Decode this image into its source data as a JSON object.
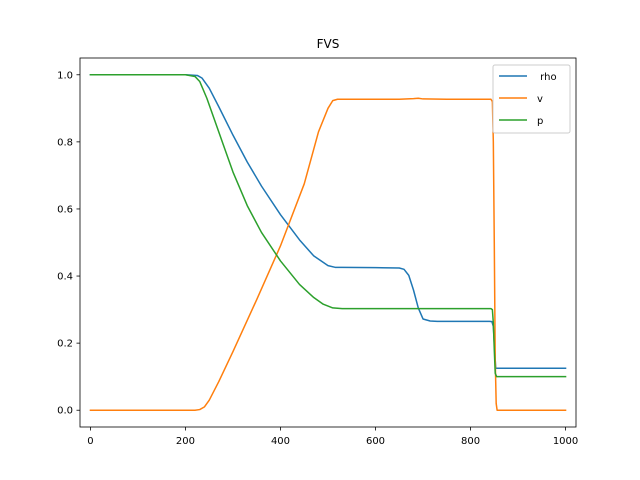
{
  "chart_data": {
    "type": "line",
    "title": "FVS",
    "xlabel": "",
    "ylabel": "",
    "xlim": [
      -22,
      1022
    ],
    "ylim": [
      -0.05,
      1.05
    ],
    "xticks": [
      0,
      200,
      400,
      600,
      800,
      1000
    ],
    "xtick_labels": [
      "0",
      "200",
      "400",
      "600",
      "800",
      "1000"
    ],
    "yticks": [
      0.0,
      0.2,
      0.4,
      0.6,
      0.8,
      1.0
    ],
    "ytick_labels": [
      "0.0",
      "0.2",
      "0.4",
      "0.6",
      "0.8",
      "1.0"
    ],
    "grid": false,
    "legend_position": "top-right",
    "series": [
      {
        "name": " rho",
        "color": "#1f77b4",
        "x": [
          0,
          200,
          225,
          235,
          250,
          270,
          300,
          330,
          360,
          400,
          440,
          470,
          500,
          515,
          530,
          600,
          650,
          660,
          670,
          680,
          690,
          700,
          715,
          730,
          760,
          800,
          840,
          845,
          848,
          850,
          853,
          856,
          860,
          900,
          1000
        ],
        "y": [
          1.0,
          1.0,
          0.998,
          0.99,
          0.96,
          0.905,
          0.82,
          0.74,
          0.668,
          0.583,
          0.508,
          0.46,
          0.431,
          0.426,
          0.426,
          0.425,
          0.424,
          0.42,
          0.402,
          0.358,
          0.305,
          0.272,
          0.266,
          0.265,
          0.265,
          0.265,
          0.265,
          0.264,
          0.25,
          0.2,
          0.125,
          0.125,
          0.125,
          0.125,
          0.125
        ]
      },
      {
        "name": "v",
        "color": "#ff7f0e",
        "x": [
          0,
          220,
          230,
          240,
          250,
          270,
          300,
          350,
          400,
          450,
          480,
          500,
          510,
          520,
          600,
          650,
          680,
          690,
          700,
          750,
          800,
          843,
          846,
          848,
          850,
          852,
          854,
          856,
          860,
          900,
          1000
        ],
        "y": [
          0.0,
          0.0,
          0.002,
          0.01,
          0.03,
          0.085,
          0.175,
          0.33,
          0.49,
          0.675,
          0.83,
          0.9,
          0.923,
          0.927,
          0.927,
          0.927,
          0.929,
          0.93,
          0.928,
          0.927,
          0.927,
          0.927,
          0.92,
          0.8,
          0.5,
          0.15,
          0.02,
          0.0,
          0.0,
          0.0,
          0.0
        ]
      },
      {
        "name": "p",
        "color": "#2ca02c",
        "x": [
          0,
          200,
          220,
          230,
          245,
          260,
          280,
          300,
          330,
          360,
          400,
          440,
          470,
          490,
          510,
          530,
          600,
          700,
          800,
          843,
          846,
          848,
          850,
          852,
          855,
          860,
          1000
        ],
        "y": [
          1.0,
          1.0,
          0.995,
          0.98,
          0.93,
          0.87,
          0.79,
          0.71,
          0.61,
          0.53,
          0.445,
          0.375,
          0.336,
          0.316,
          0.305,
          0.303,
          0.303,
          0.303,
          0.303,
          0.303,
          0.3,
          0.26,
          0.18,
          0.11,
          0.1,
          0.1,
          0.1
        ]
      }
    ]
  }
}
